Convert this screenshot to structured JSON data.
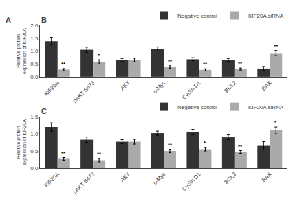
{
  "annotations": [
    "A"
  ],
  "chart_data": [
    {
      "type": "bar",
      "title": "B",
      "categories": [
        "KIF20A",
        "pAKT S473",
        "AKT",
        "c-Myc",
        "Cyclin D1",
        "BCL2",
        "BAX"
      ],
      "ylabel": "Relative protein expression of KIF20A",
      "ylim": [
        0,
        2.0
      ],
      "yticks": [
        {
          "value": 0,
          "label": "0.0"
        },
        0.5,
        {
          "value": 1,
          "label": "1.0"
        },
        1.5,
        {
          "value": 2,
          "label": "2.0"
        }
      ],
      "grid": false,
      "legend": "upper right",
      "series": [
        {
          "name": "Negative control",
          "color": "#333333",
          "values": [
            1.38,
            1.05,
            0.65,
            1.08,
            0.68,
            0.65,
            0.32
          ],
          "errors": [
            0.15,
            0.1,
            0.06,
            0.08,
            0.06,
            0.06,
            0.08
          ]
        },
        {
          "name": "KIF20A siRNA",
          "color": "#aaaaaa",
          "values": [
            0.28,
            0.58,
            0.65,
            0.38,
            0.27,
            0.3,
            0.92
          ],
          "errors": [
            0.04,
            0.08,
            0.07,
            0.05,
            0.04,
            0.04,
            0.1
          ],
          "annotations": [
            "**",
            "*",
            null,
            "**",
            "**",
            "**",
            "**"
          ]
        }
      ]
    },
    {
      "type": "bar",
      "title": "C",
      "categories": [
        "KIF20A",
        "pAKT S473",
        "AKT",
        "c-Myc",
        "Cyclin D1",
        "BCL2",
        "BAX"
      ],
      "ylabel": "Relative protein expression of KIF20A",
      "ylim": [
        0,
        1.5
      ],
      "yticks": [
        {
          "value": 0,
          "label": "0.0"
        },
        0.5,
        {
          "value": 1,
          "label": "1.0"
        },
        1.5
      ],
      "grid": false,
      "legend": "upper right",
      "series": [
        {
          "name": "Negative control",
          "color": "#333333",
          "values": [
            1.2,
            0.83,
            0.77,
            1.02,
            1.05,
            0.9,
            0.65
          ],
          "errors": [
            0.12,
            0.08,
            0.06,
            0.06,
            0.08,
            0.07,
            0.12
          ]
        },
        {
          "name": "KIF20A siRNA",
          "color": "#aaaaaa",
          "values": [
            0.27,
            0.23,
            0.77,
            0.5,
            0.55,
            0.47,
            1.1
          ],
          "errors": [
            0.04,
            0.05,
            0.07,
            0.05,
            0.05,
            0.04,
            0.1
          ],
          "annotations": [
            "**",
            "**",
            null,
            "**",
            "*",
            "**",
            "*"
          ]
        }
      ]
    }
  ]
}
